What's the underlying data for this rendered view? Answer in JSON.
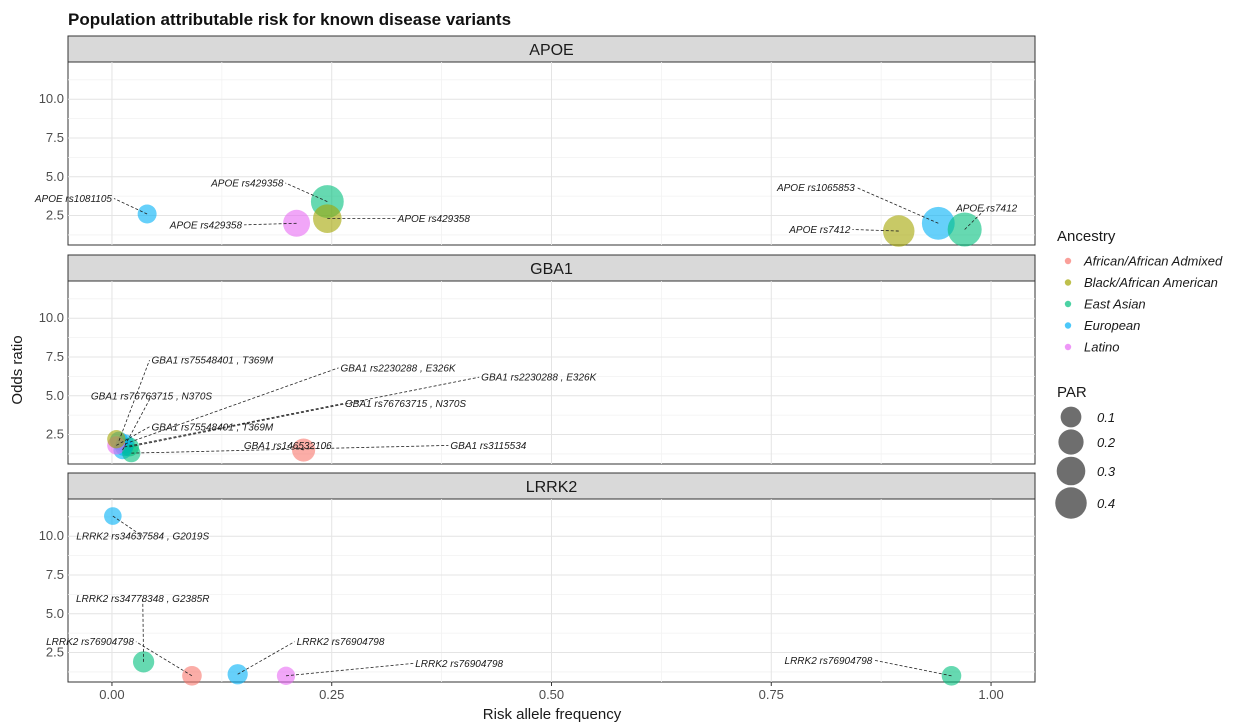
{
  "chart_data": {
    "type": "scatter",
    "title": "Population attributable risk for known disease variants",
    "xlabel": "Risk allele frequency",
    "ylabel": "Odds ratio",
    "xlim": [
      -0.05,
      1.05
    ],
    "ylim": [
      0.6,
      12.4
    ],
    "x_ticks": [
      0,
      0.25,
      0.5,
      0.75,
      1
    ],
    "x_tick_labels": [
      "0.00",
      "0.25",
      "0.50",
      "0.75",
      "1.00"
    ],
    "y_ticks": [
      2.5,
      5,
      7.5,
      10
    ],
    "y_tick_labels": [
      "2.5",
      "5.0",
      "7.5",
      "10.0"
    ],
    "grid": true,
    "legend_position": "right",
    "colors": {
      "African/African Admixed": "#F8766D",
      "Black/African American": "#A3A500",
      "East Asian": "#00BF7D",
      "European": "#00B0F6",
      "Latino": "#E76BF3"
    },
    "legend": {
      "color_title": "Ancestry",
      "color_entries": [
        "African/African Admixed",
        "Black/African American",
        "East Asian",
        "European",
        "Latino"
      ],
      "size_title": "PAR",
      "size_entries": [
        {
          "label": "0.1",
          "value": 0.1
        },
        {
          "label": "0.2",
          "value": 0.2
        },
        {
          "label": "0.3",
          "value": 0.3
        },
        {
          "label": "0.4",
          "value": 0.4
        }
      ]
    },
    "panels": [
      {
        "name": "APOE",
        "points": [
          {
            "ancestry": "European",
            "x": 0.04,
            "y": 2.6,
            "par": 0.07,
            "label": "APOE rs1081105",
            "lx": 0.0,
            "ly": 3.6
          },
          {
            "ancestry": "East Asian",
            "x": 0.245,
            "y": 3.4,
            "par": 0.45,
            "label": "APOE rs429358",
            "lx": 0.195,
            "ly": 4.6
          },
          {
            "ancestry": "Black/African American",
            "x": 0.245,
            "y": 2.3,
            "par": 0.3,
            "label": "APOE rs429358",
            "lx": 0.325,
            "ly": 2.3
          },
          {
            "ancestry": "Latino",
            "x": 0.21,
            "y": 2.0,
            "par": 0.25,
            "label": "APOE rs429358",
            "lx": 0.148,
            "ly": 1.9
          },
          {
            "ancestry": "Black/African American",
            "x": 0.895,
            "y": 1.5,
            "par": 0.4,
            "label": "APOE rs7412",
            "lx": 0.84,
            "ly": 1.6
          },
          {
            "ancestry": "European",
            "x": 0.94,
            "y": 2.0,
            "par": 0.45,
            "label": "APOE rs1065853",
            "lx": 0.845,
            "ly": 4.3
          },
          {
            "ancestry": "East Asian",
            "x": 0.97,
            "y": 1.6,
            "par": 0.5,
            "label": "APOE rs7412",
            "lx": 0.995,
            "ly": 3.0
          }
        ]
      },
      {
        "name": "GBA1",
        "points": [
          {
            "ancestry": "European",
            "x": 0.008,
            "y": 2.1,
            "par": 0.06,
            "label": "GBA1 rs75548401 ,  T369M",
            "lx": 0.045,
            "ly": 7.3
          },
          {
            "ancestry": "European",
            "x": 0.015,
            "y": 1.9,
            "par": 0.07,
            "label": "GBA1 rs2230288 ,  E326K",
            "lx": 0.26,
            "ly": 6.8
          },
          {
            "ancestry": "East Asian",
            "x": 0.02,
            "y": 1.7,
            "par": 0.07,
            "label": "GBA1 rs2230288 ,  E326K",
            "lx": 0.42,
            "ly": 6.2
          },
          {
            "ancestry": "European",
            "x": 0.012,
            "y": 1.5,
            "par": 0.06,
            "label": "GBA1 rs76763715 ,  N370S",
            "lx": 0.045,
            "ly": 5.0
          },
          {
            "ancestry": "European",
            "x": 0.014,
            "y": 1.7,
            "par": 0.06,
            "label": "GBA1 rs76763715 ,  N370S",
            "lx": 0.265,
            "ly": 4.5
          },
          {
            "ancestry": "Latino",
            "x": 0.005,
            "y": 1.8,
            "par": 0.06,
            "label": "GBA1 rs75548401 ,  T369M",
            "lx": 0.045,
            "ly": 3.0
          },
          {
            "ancestry": "Black/African American",
            "x": 0.005,
            "y": 2.2,
            "par": 0.06,
            "label": "",
            "lx": 0.005,
            "ly": 2.2
          },
          {
            "ancestry": "African/African Admixed",
            "x": 0.218,
            "y": 1.5,
            "par": 0.15,
            "label": "GBA1 rs146532106",
            "lx": 0.2,
            "ly": 1.8
          },
          {
            "ancestry": "East Asian",
            "x": 0.022,
            "y": 1.3,
            "par": 0.06,
            "label": "GBA1 rs3115534",
            "lx": 0.385,
            "ly": 1.8
          }
        ]
      },
      {
        "name": "LRRK2",
        "points": [
          {
            "ancestry": "European",
            "x": 0.001,
            "y": 11.3,
            "par": 0.05,
            "label": "LRRK2 rs34637584 ,  G2019S",
            "lx": 0.035,
            "ly": 10.0
          },
          {
            "ancestry": "East Asian",
            "x": 0.036,
            "y": 1.9,
            "par": 0.11,
            "label": "LRRK2 rs34778348 ,  G2385R",
            "lx": 0.035,
            "ly": 6.0
          },
          {
            "ancestry": "African/African Admixed",
            "x": 0.091,
            "y": 1.0,
            "par": 0.08,
            "label": "LRRK2 rs76904798",
            "lx": 0.025,
            "ly": 3.2
          },
          {
            "ancestry": "European",
            "x": 0.143,
            "y": 1.1,
            "par": 0.09,
            "label": "LRRK2 rs76904798",
            "lx": 0.21,
            "ly": 3.2
          },
          {
            "ancestry": "Latino",
            "x": 0.198,
            "y": 1.0,
            "par": 0.06,
            "label": "LRRK2 rs76904798",
            "lx": 0.345,
            "ly": 1.8
          },
          {
            "ancestry": "East Asian",
            "x": 0.955,
            "y": 1.0,
            "par": 0.08,
            "label": "LRRK2 rs76904798",
            "lx": 0.865,
            "ly": 2.0
          }
        ]
      }
    ]
  }
}
